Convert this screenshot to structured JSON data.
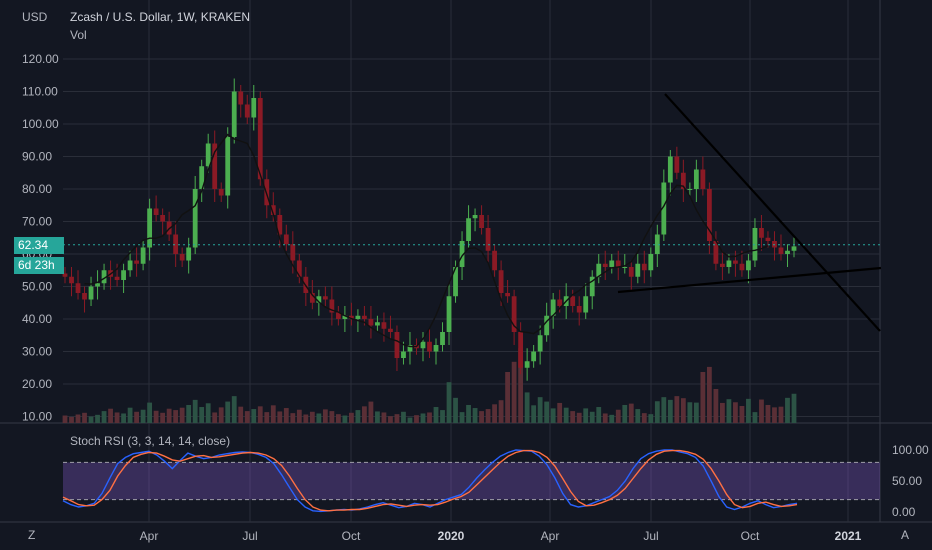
{
  "header": {
    "currency": "USD",
    "title": "Zcash / U.S. Dollar, 1W, KRAKEN",
    "volume_label": "Vol",
    "price_badge": "62.34",
    "countdown_badge": "6d 23h"
  },
  "indicator": {
    "label": "Stoch RSI (3, 3, 14, 14, close)"
  },
  "footer": {
    "left_letter": "Z",
    "right_letter": "A"
  },
  "colors": {
    "background": "#131722",
    "grid": "#2a2e39",
    "up": "#26a69a",
    "down": "#8b1a25",
    "up_bright": "#4caf50",
    "volume_up": "#2c5345",
    "volume_down": "#5a2f36",
    "ma_line": "#111111",
    "trendline": "#000000",
    "stoch_k": "#2962ff",
    "stoch_d": "#ff7043",
    "stoch_band": "#7e57c2"
  },
  "chart_data": [
    {
      "type": "candlestick",
      "title": "Zcash / U.S. Dollar, 1W, KRAKEN",
      "ylabel": "USD",
      "ylim": [
        7,
        135
      ],
      "y_ticks": [
        10,
        20,
        30,
        40,
        50,
        60,
        70,
        80,
        90,
        100,
        110,
        120
      ],
      "x_ticks": [
        "Apr",
        "Jul",
        "Oct",
        "2020",
        "Apr",
        "Jul",
        "Oct",
        "2021"
      ],
      "last_price": 62.34,
      "closes": [
        53,
        51,
        48,
        46,
        50,
        51,
        55,
        53,
        52,
        55,
        58,
        57,
        62,
        74,
        72,
        70,
        66,
        60,
        58,
        62,
        80,
        87,
        94,
        80,
        78,
        96,
        110,
        106,
        102,
        108,
        83,
        75,
        72,
        66,
        63,
        58,
        53,
        48,
        45,
        47,
        46,
        42,
        40,
        41,
        40,
        41,
        40,
        38,
        39,
        37,
        36,
        28,
        30,
        32,
        31,
        33,
        30,
        32,
        36,
        47,
        56,
        64,
        71,
        72,
        68,
        61,
        55,
        48,
        47,
        36,
        25,
        27,
        30,
        35,
        41,
        46,
        44,
        47,
        44,
        42,
        47,
        53,
        57,
        56,
        58,
        56,
        56,
        53,
        57,
        55,
        60,
        66,
        82,
        90,
        85,
        80,
        80,
        86,
        80,
        64,
        57,
        56,
        58,
        57,
        55,
        58,
        68,
        65,
        64,
        62,
        60,
        61,
        62.34
      ],
      "volume": [
        2.2,
        1.8,
        2.5,
        3.0,
        1.9,
        2.4,
        3.5,
        4.2,
        3.1,
        2.8,
        4.5,
        3.3,
        3.9,
        6.0,
        3.6,
        3.0,
        4.2,
        3.8,
        4.5,
        5.3,
        6.8,
        4.7,
        5.8,
        3.1,
        4.6,
        6.3,
        7.9,
        4.8,
        3.5,
        4.1,
        4.9,
        3.2,
        5.2,
        3.4,
        4.4,
        2.9,
        3.9,
        2.5,
        3.3,
        2.8,
        4.0,
        3.5,
        2.6,
        2.2,
        3.0,
        3.8,
        4.9,
        6.3,
        3.4,
        3.1,
        2.0,
        2.6,
        3.3,
        1.6,
        2.3,
        2.8,
        3.1,
        4.7,
        3.8,
        12.0,
        7.4,
        3.2,
        5.3,
        4.4,
        3.5,
        4.1,
        5.5,
        6.7,
        15.0,
        18.0,
        22.0,
        9.0,
        5.2,
        7.6,
        6.3,
        4.3,
        5.9,
        4.5,
        3.5,
        3.0,
        4.3,
        3.3,
        4.7,
        2.8,
        2.4,
        3.9,
        5.3,
        5.7,
        4.1,
        2.9,
        2.6,
        6.4,
        7.6,
        6.8,
        7.9,
        7.3,
        6.1,
        6.0,
        15.0,
        16.5,
        10.0,
        5.9,
        7.0,
        6.1,
        5.0,
        7.1,
        3.2,
        6.9,
        5.3,
        4.6,
        4.8,
        7.4,
        8.6
      ]
    },
    {
      "type": "line",
      "title": "Stoch RSI (3, 3, 14, 14, close)",
      "ylim": [
        0,
        100
      ],
      "y_ticks": [
        0,
        50,
        100
      ],
      "band": [
        20,
        80
      ],
      "series": [
        {
          "name": "K",
          "values": [
            18,
            12,
            8,
            10,
            14,
            30,
            55,
            78,
            88,
            94,
            96,
            98,
            92,
            82,
            70,
            83,
            95,
            90,
            86,
            88,
            92,
            94,
            96,
            97,
            96,
            93,
            88,
            78,
            60,
            40,
            20,
            8,
            2,
            1,
            2,
            3,
            4,
            3,
            5,
            8,
            12,
            15,
            11,
            7,
            9,
            14,
            12,
            8,
            14,
            20,
            24,
            28,
            40,
            55,
            68,
            80,
            90,
            96,
            100,
            99,
            98,
            90,
            76,
            55,
            30,
            12,
            8,
            10,
            15,
            20,
            25,
            35,
            50,
            70,
            86,
            94,
            98,
            100,
            100,
            97,
            94,
            88,
            74,
            50,
            25,
            8,
            4,
            8,
            14,
            18,
            12,
            7,
            9,
            12,
            14
          ]
        },
        {
          "name": "D",
          "values": [
            24,
            18,
            12,
            10,
            11,
            20,
            35,
            58,
            75,
            88,
            93,
            96,
            95,
            90,
            84,
            82,
            86,
            90,
            91,
            88,
            89,
            91,
            93,
            95,
            96,
            95,
            92,
            86,
            75,
            58,
            38,
            20,
            8,
            3,
            2,
            3,
            3,
            4,
            4,
            6,
            9,
            12,
            13,
            11,
            9,
            11,
            12,
            11,
            12,
            16,
            21,
            25,
            32,
            44,
            56,
            68,
            80,
            90,
            96,
            99,
            99,
            96,
            88,
            74,
            54,
            33,
            17,
            10,
            11,
            15,
            20,
            27,
            38,
            54,
            70,
            84,
            93,
            98,
            99,
            99,
            97,
            93,
            85,
            70,
            50,
            28,
            12,
            7,
            9,
            14,
            16,
            12,
            9,
            10,
            12
          ]
        }
      ]
    }
  ]
}
